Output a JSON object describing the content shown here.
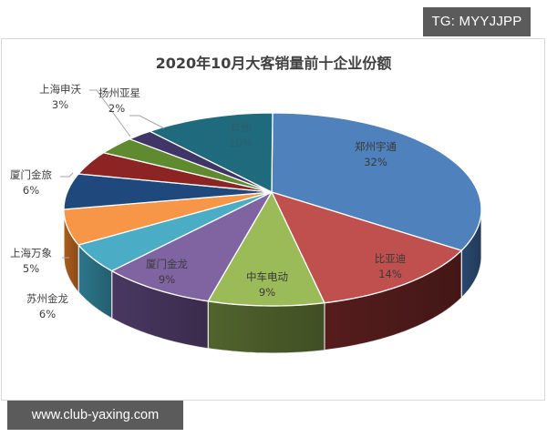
{
  "watermarks": {
    "telegram": "TG: MYYJJPP",
    "website": "www.club-yaxing.com"
  },
  "chart_data": {
    "type": "pie",
    "style": "3d-exploded-perspective",
    "title": "2020年10月大客销量前十企业份额",
    "slices": [
      {
        "name": "郑州宇通",
        "value": 32,
        "label": "32%",
        "color": "#4f81bd",
        "side": "#2c4d75"
      },
      {
        "name": "比亚迪",
        "value": 14,
        "label": "14%",
        "color": "#c0504d",
        "side": "#5a1e1e"
      },
      {
        "name": "中车电动",
        "value": 9,
        "label": "9%",
        "color": "#9bbb59",
        "side": "#55692f"
      },
      {
        "name": "厦门金龙",
        "value": 9,
        "label": "9%",
        "color": "#8064a2",
        "side": "#4d3a66"
      },
      {
        "name": "上海万象",
        "value": 5,
        "label": "5%",
        "color": "#4bacc6",
        "side": "#2f7d93"
      },
      {
        "name": "苏州金龙",
        "value": 6,
        "label": "6%",
        "color": "#f79646",
        "side": "#b5621e"
      },
      {
        "name": "厦门金旅",
        "value": 6,
        "label": "6%",
        "color": "#1f497d",
        "side": "#142f52"
      },
      {
        "name": "",
        "value": 4,
        "label": "",
        "color": "#8b2423",
        "side": "#5a1615"
      },
      {
        "name": "上海申沃",
        "value": 3,
        "label": "3%",
        "color": "#5f8a2f",
        "side": "#3c5a1d"
      },
      {
        "name": "扬州亚星",
        "value": 2,
        "label": "2%",
        "color": "#3f3567",
        "side": "#2a2346"
      },
      {
        "name": "其他",
        "value": 10,
        "label": "10%",
        "color": "#1f6b7d",
        "side": "#14485a"
      }
    ],
    "legend": "none",
    "data_labels": "category name and percentage"
  },
  "labels": {
    "zhengzhou": {
      "name": "郑州宇通",
      "pct": "32%"
    },
    "byd": {
      "name": "比亚迪",
      "pct": "14%"
    },
    "crrc": {
      "name": "中车电动",
      "pct": "9%"
    },
    "xiamen_king_long": {
      "name": "厦门金龙",
      "pct": "9%"
    },
    "shanghai_wanxiang": {
      "name": "上海万象",
      "pct": "5%"
    },
    "suzhou_king_long": {
      "name": "苏州金龙",
      "pct": "6%"
    },
    "xiamen_golden_dragon": {
      "name": "厦门金旅",
      "pct": "6%"
    },
    "shanghai_sunwin": {
      "name": "上海申沃",
      "pct": "3%"
    },
    "yangzhou_yaxing": {
      "name": "扬州亚星",
      "pct": "2%"
    },
    "others": {
      "name": "其他",
      "pct": "10%"
    }
  }
}
